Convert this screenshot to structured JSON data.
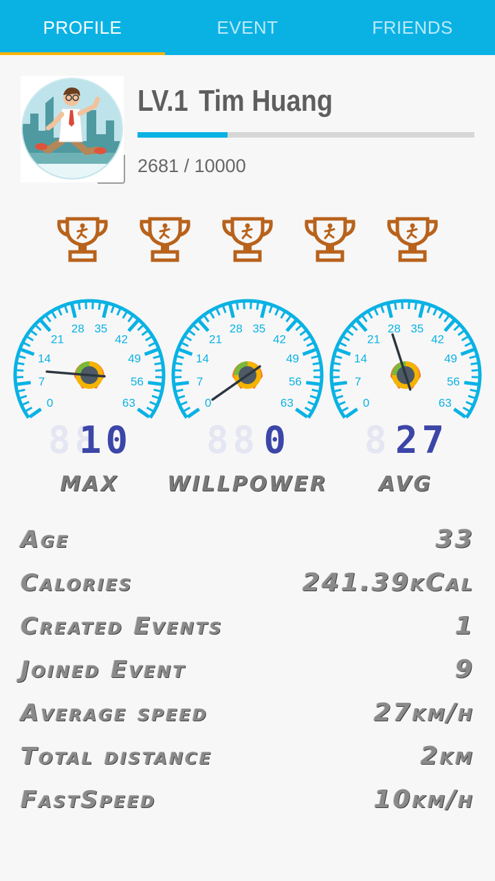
{
  "tabs": [
    {
      "label": "PROFILE",
      "active": true
    },
    {
      "label": "EVENT",
      "active": false
    },
    {
      "label": "FRIENDS",
      "active": false
    }
  ],
  "colors": {
    "accent": "#0ab2e4",
    "tab_indicator": "#ffb300",
    "trophy": "#b8621b",
    "digit": "#3c46a8"
  },
  "profile": {
    "level": "LV.1",
    "name": "Tim Huang",
    "xp_current": "2681",
    "xp_separator": "/",
    "xp_max": "10000",
    "xp_progress": 0.2681
  },
  "trophies": [
    "trophy-icon",
    "trophy-icon",
    "trophy-icon",
    "trophy-icon",
    "trophy-icon"
  ],
  "gauge_scale": [
    "0",
    "7",
    "14",
    "21",
    "28",
    "35",
    "42",
    "49",
    "56",
    "63"
  ],
  "gauges": [
    {
      "label": "MAX",
      "digits_ghost": "88",
      "digits_value": "10",
      "value": 10
    },
    {
      "label": "WILLPOWER",
      "digits_ghost": "88",
      "digits_value": "0",
      "value": 0
    },
    {
      "label": "AVG",
      "digits_ghost": "8",
      "digits_value": "27",
      "value": 27
    }
  ],
  "stats": [
    {
      "label": "Age",
      "value": "33",
      "unit": ""
    },
    {
      "label": "Calories",
      "value": "241.39",
      "unit": "kCal"
    },
    {
      "label": "Created Events",
      "value": "1",
      "unit": ""
    },
    {
      "label": "Joined Event",
      "value": "9",
      "unit": ""
    },
    {
      "label": "Average speed",
      "value": "27",
      "unit": "km/h"
    },
    {
      "label": "Total distance",
      "value": "2",
      "unit": "km"
    },
    {
      "label": "FastSpeed",
      "value": "10",
      "unit": "km/h"
    }
  ]
}
